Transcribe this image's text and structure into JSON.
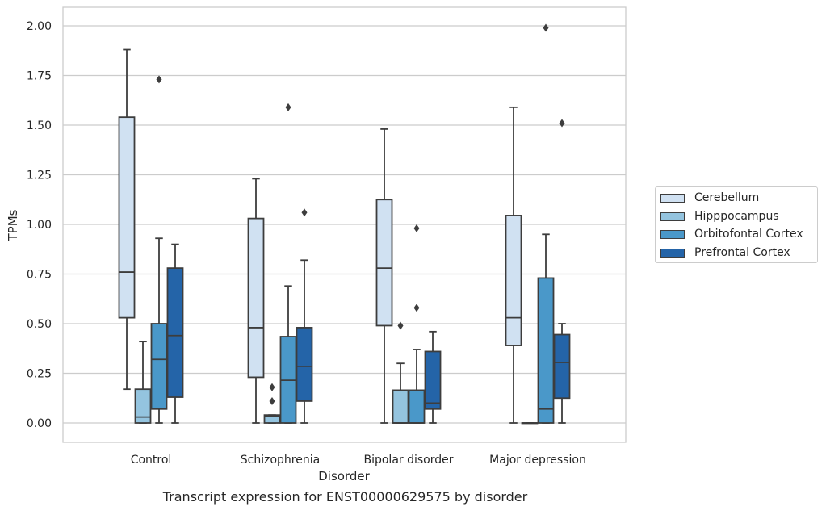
{
  "caption": "Transcript expression for ENST00000629575 by disorder",
  "chart_data": {
    "type": "box",
    "title": "",
    "xlabel": "Disorder",
    "ylabel": "TPMs",
    "ylim": [
      -0.1,
      2.1
    ],
    "yticks": [
      "0.00",
      "0.25",
      "0.50",
      "0.75",
      "1.00",
      "1.25",
      "1.50",
      "1.75",
      "2.00"
    ],
    "ytick_values": [
      0,
      0.25,
      0.5,
      0.75,
      1.0,
      1.25,
      1.5,
      1.75,
      2.0
    ],
    "grid": true,
    "legend_position": "right-center",
    "categories": [
      "Control",
      "Schizophrenia",
      "Bipolar disorder",
      "Major depression"
    ],
    "series": [
      {
        "name": "Cerebellum",
        "color": "#d0e1f2",
        "boxes": [
          {
            "whislo": 0.17,
            "q1": 0.53,
            "med": 0.76,
            "q3": 1.54,
            "whishi": 1.88,
            "fliers": []
          },
          {
            "whislo": 0.0,
            "q1": 0.23,
            "med": 0.48,
            "q3": 1.03,
            "whishi": 1.23,
            "fliers": []
          },
          {
            "whislo": 0.0,
            "q1": 0.49,
            "med": 0.78,
            "q3": 1.125,
            "whishi": 1.48,
            "fliers": []
          },
          {
            "whislo": 0.0,
            "q1": 0.39,
            "med": 0.53,
            "q3": 1.045,
            "whishi": 1.59,
            "fliers": []
          }
        ]
      },
      {
        "name": "Hipppocampus",
        "color": "#94c4df",
        "boxes": [
          {
            "whislo": 0.0,
            "q1": 0.0,
            "med": 0.03,
            "q3": 0.17,
            "whishi": 0.41,
            "fliers": []
          },
          {
            "whislo": 0.0,
            "q1": 0.0,
            "med": 0.035,
            "q3": 0.04,
            "whishi": 0.04,
            "fliers": [
              0.11,
              0.18
            ]
          },
          {
            "whislo": 0.0,
            "q1": 0.0,
            "med": 0.0,
            "q3": 0.165,
            "whishi": 0.3,
            "fliers": [
              0.49
            ]
          },
          {
            "whislo": 0.0,
            "q1": 0.0,
            "med": 0.0,
            "q3": 0.0,
            "whishi": 0.0,
            "fliers": []
          }
        ]
      },
      {
        "name": "Orbitofontal Cortex",
        "color": "#4a98c9",
        "boxes": [
          {
            "whislo": 0.0,
            "q1": 0.07,
            "med": 0.32,
            "q3": 0.5,
            "whishi": 0.93,
            "fliers": [
              1.73
            ]
          },
          {
            "whislo": 0.0,
            "q1": 0.0,
            "med": 0.215,
            "q3": 0.435,
            "whishi": 0.69,
            "fliers": [
              1.59
            ]
          },
          {
            "whislo": 0.0,
            "q1": 0.0,
            "med": 0.0,
            "q3": 0.165,
            "whishi": 0.37,
            "fliers": [
              0.58,
              0.98
            ]
          },
          {
            "whislo": 0.0,
            "q1": 0.0,
            "med": 0.07,
            "q3": 0.73,
            "whishi": 0.95,
            "fliers": [
              1.99
            ]
          }
        ]
      },
      {
        "name": "Prefrontal Cortex",
        "color": "#2464a8",
        "boxes": [
          {
            "whislo": 0.0,
            "q1": 0.13,
            "med": 0.44,
            "q3": 0.78,
            "whishi": 0.9,
            "fliers": []
          },
          {
            "whislo": 0.0,
            "q1": 0.11,
            "med": 0.285,
            "q3": 0.48,
            "whishi": 0.82,
            "fliers": [
              1.06
            ]
          },
          {
            "whislo": 0.0,
            "q1": 0.07,
            "med": 0.1,
            "q3": 0.36,
            "whishi": 0.46,
            "fliers": []
          },
          {
            "whislo": 0.0,
            "q1": 0.125,
            "med": 0.305,
            "q3": 0.445,
            "whishi": 0.5,
            "fliers": [
              1.51
            ]
          }
        ]
      }
    ]
  }
}
